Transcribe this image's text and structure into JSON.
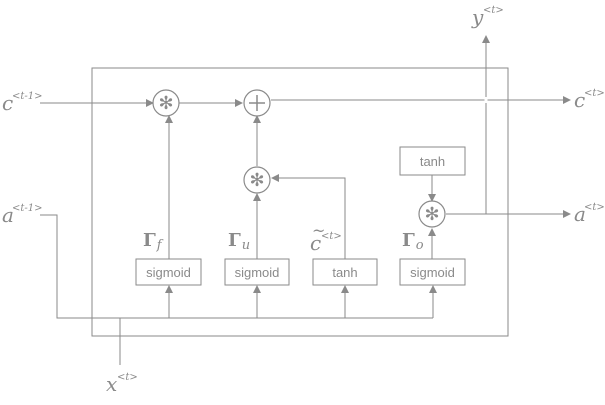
{
  "labels": {
    "c_prev": "c",
    "c_prev_sup": "<t-1>",
    "a_prev": "a",
    "a_prev_sup": "<t-1>",
    "x_t": "x",
    "x_t_sup": "<t>",
    "y_t": "y",
    "y_t_sup": "<t>",
    "c_t": "c",
    "c_t_sup": "<t>",
    "a_t": "a",
    "a_t_sup": "<t>",
    "c_tilde": "c",
    "c_tilde_tilde": "~",
    "c_tilde_sup": "<t>"
  },
  "gates": {
    "forget": "Γ",
    "forget_sub": "f",
    "update": "Γ",
    "update_sub": "u",
    "output": "Γ",
    "output_sub": "o"
  },
  "boxes": {
    "sigmoid_forget": "sigmoid",
    "sigmoid_update": "sigmoid",
    "tanh_candidate": "tanh",
    "sigmoid_output": "sigmoid",
    "tanh_output": "tanh"
  },
  "operators": {
    "multiply": "✻",
    "add": "+"
  },
  "colors": {
    "stroke": "#8a8a8a",
    "text": "#8a8a8a"
  }
}
